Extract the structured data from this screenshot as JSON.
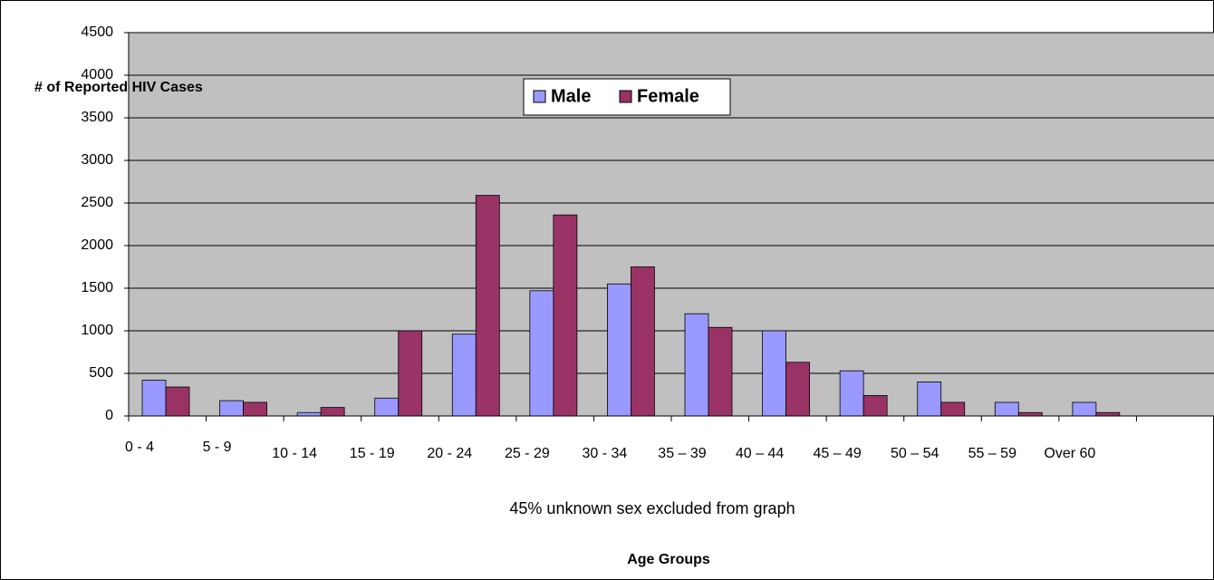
{
  "chart_data": {
    "type": "bar",
    "y_label": "# of Reported HIV Cases",
    "x_label": "Age Groups",
    "annotation": "45% unknown sex excluded from graph",
    "categories": [
      "0 - 4",
      "5 - 9",
      "10 - 14",
      "15 - 19",
      "20 - 24",
      "25 - 29",
      "30 - 34",
      "35 – 39",
      "40 – 44",
      "45 – 49",
      "50 – 54",
      "55 – 59",
      "Over 60",
      null
    ],
    "series": [
      {
        "name": "Male",
        "color": "#9999ff",
        "values": [
          420,
          180,
          40,
          210,
          960,
          1470,
          1550,
          1200,
          1000,
          530,
          400,
          160,
          160,
          null
        ]
      },
      {
        "name": "Female",
        "color": "#993366",
        "values": [
          340,
          160,
          100,
          1000,
          2590,
          2360,
          1750,
          1040,
          630,
          240,
          160,
          40,
          40,
          null
        ]
      }
    ],
    "ylim": [
      0,
      4500
    ],
    "yticks": [
      0,
      500,
      1000,
      1500,
      2000,
      2500,
      3000,
      3500,
      4000,
      4500
    ],
    "grid": true
  }
}
